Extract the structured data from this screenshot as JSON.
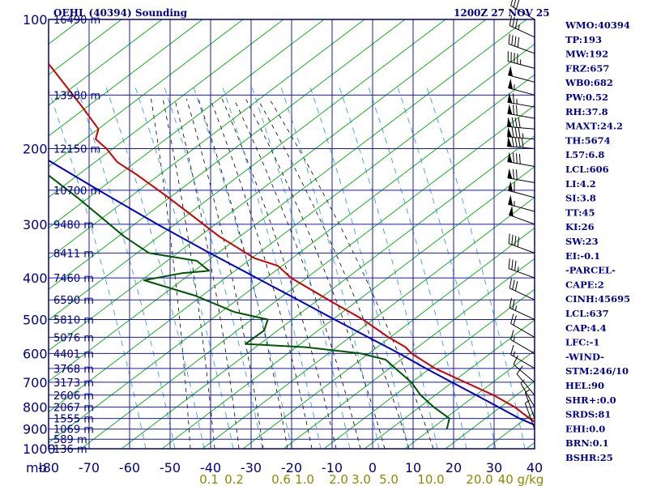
{
  "header": {
    "title": "OEHL (40394) Sounding",
    "time": "1200Z 27 NOV 25"
  },
  "colors": {
    "frame": "#00008b",
    "temperature": "#cc0000",
    "dewpoint": "#005500",
    "parcel": "#0000cc",
    "dry_adiabat": "#00aa00",
    "moist_adiabat": "#000000",
    "mixing_ratio": "#1e90ff",
    "mixing_label": "#8b8b00"
  },
  "chart_data": {
    "type": "line",
    "diagram": "skew-t",
    "pressure_axis": {
      "unit_label": "mb",
      "ticks": [
        100,
        200,
        300,
        400,
        500,
        600,
        700,
        800,
        900,
        1000
      ],
      "range": [
        1000,
        100
      ]
    },
    "temperature_axis": {
      "ticks": [
        -80,
        -70,
        -60,
        -50,
        -40,
        -30,
        -20,
        -10,
        0,
        10,
        20,
        30,
        40
      ],
      "tick_labels": [
        "-80",
        "-70",
        "-60",
        "-50",
        "-40",
        "-30",
        "-20",
        "-10",
        "0",
        "10",
        "20",
        "30",
        "40"
      ]
    },
    "mixing_ratio_labels": [
      "0.1",
      "0.2",
      "0.6",
      "1.0",
      "2.0",
      "3.0",
      "5.0",
      "10.0",
      "20.0",
      "40 g/kg"
    ],
    "height_labels": [
      {
        "p": 100,
        "text": "16490 m"
      },
      {
        "p": 150,
        "text": "13980 m"
      },
      {
        "p": 200,
        "text": "12150 m"
      },
      {
        "p": 250,
        "text": "10700 m"
      },
      {
        "p": 300,
        "text": "9480 m"
      },
      {
        "p": 350,
        "text": "8411 m"
      },
      {
        "p": 400,
        "text": "7460 m"
      },
      {
        "p": 450,
        "text": "6590 m"
      },
      {
        "p": 500,
        "text": "5810 m"
      },
      {
        "p": 550,
        "text": "5076 m"
      },
      {
        "p": 600,
        "text": "4401 m"
      },
      {
        "p": 650,
        "text": "3768 m"
      },
      {
        "p": 700,
        "text": "3173 m"
      },
      {
        "p": 750,
        "text": "2606 m"
      },
      {
        "p": 800,
        "text": "2067 m"
      },
      {
        "p": 850,
        "text": "1555 m"
      },
      {
        "p": 900,
        "text": "1069 m"
      },
      {
        "p": 950,
        "text": "589 m"
      },
      {
        "p": 1000,
        "text": "136 m"
      }
    ],
    "series": [
      {
        "name": "temperature",
        "points": [
          [
            905,
            22.0
          ],
          [
            850,
            19.0
          ],
          [
            800,
            16.5
          ],
          [
            750,
            12.5
          ],
          [
            700,
            6.8
          ],
          [
            650,
            0.8
          ],
          [
            600,
            -3.5
          ],
          [
            580,
            -4.3
          ],
          [
            550,
            -7.5
          ],
          [
            500,
            -12.0
          ],
          [
            450,
            -18.5
          ],
          [
            400,
            -25.5
          ],
          [
            375,
            -27.5
          ],
          [
            360,
            -32.5
          ],
          [
            320,
            -39.0
          ],
          [
            290,
            -43.0
          ],
          [
            260,
            -47.5
          ],
          [
            230,
            -53.0
          ],
          [
            215,
            -56.5
          ],
          [
            200,
            -57.8
          ],
          [
            190,
            -59.5
          ],
          [
            180,
            -57.8
          ],
          [
            160,
            -59.5
          ],
          [
            130,
            -63.0
          ],
          [
            110,
            -66.0
          ],
          [
            100,
            -68.0
          ]
        ]
      },
      {
        "name": "dewpoint",
        "points": [
          [
            900,
            -2.5
          ],
          [
            850,
            -0.8
          ],
          [
            800,
            -3.5
          ],
          [
            750,
            -5.5
          ],
          [
            700,
            -6.5
          ],
          [
            650,
            -9.0
          ],
          [
            620,
            -10.5
          ],
          [
            600,
            -16.0
          ],
          [
            580,
            -29.0
          ],
          [
            570,
            -43.5
          ],
          [
            530,
            -37.5
          ],
          [
            500,
            -35.5
          ],
          [
            480,
            -43.0
          ],
          [
            440,
            -51.0
          ],
          [
            405,
            -62.0
          ],
          [
            390,
            -52.0
          ],
          [
            385,
            -45.0
          ],
          [
            365,
            -47.0
          ],
          [
            350,
            -58.0
          ],
          [
            320,
            -62.5
          ],
          [
            290,
            -66.0
          ],
          [
            260,
            -70.0
          ],
          [
            230,
            -75.0
          ],
          [
            200,
            -80.0
          ],
          [
            185,
            -85.0
          ],
          [
            170,
            -88.0
          ]
        ]
      },
      {
        "name": "parcel",
        "points": [
          [
            905,
            22.0
          ],
          [
            850,
            16.5
          ],
          [
            800,
            12.5
          ],
          [
            750,
            8.2
          ],
          [
            700,
            3.5
          ],
          [
            650,
            -1.5
          ],
          [
            600,
            -6.5
          ],
          [
            550,
            -12.5
          ],
          [
            500,
            -19.0
          ],
          [
            450,
            -26.0
          ],
          [
            400,
            -34.0
          ],
          [
            350,
            -43.0
          ],
          [
            300,
            -53.0
          ],
          [
            250,
            -64.0
          ],
          [
            200,
            -77.0
          ],
          [
            175,
            -85.0
          ]
        ]
      }
    ],
    "wind_barbs": [
      {
        "p": 100,
        "dir": 300,
        "kt": 30
      },
      {
        "p": 110,
        "dir": 295,
        "kt": 35
      },
      {
        "p": 120,
        "dir": 290,
        "kt": 40
      },
      {
        "p": 130,
        "dir": 285,
        "kt": 45
      },
      {
        "p": 140,
        "dir": 285,
        "kt": 50
      },
      {
        "p": 150,
        "dir": 285,
        "kt": 55
      },
      {
        "p": 160,
        "dir": 280,
        "kt": 65
      },
      {
        "p": 170,
        "dir": 280,
        "kt": 70
      },
      {
        "p": 180,
        "dir": 275,
        "kt": 80
      },
      {
        "p": 190,
        "dir": 275,
        "kt": 85
      },
      {
        "p": 200,
        "dir": 275,
        "kt": 90
      },
      {
        "p": 220,
        "dir": 280,
        "kt": 80
      },
      {
        "p": 240,
        "dir": 280,
        "kt": 70
      },
      {
        "p": 260,
        "dir": 285,
        "kt": 60
      },
      {
        "p": 280,
        "dir": 285,
        "kt": 55
      },
      {
        "p": 300,
        "dir": 290,
        "kt": 50
      },
      {
        "p": 350,
        "dir": 290,
        "kt": 40
      },
      {
        "p": 400,
        "dir": 290,
        "kt": 35
      },
      {
        "p": 450,
        "dir": 295,
        "kt": 30
      },
      {
        "p": 500,
        "dir": 295,
        "kt": 25
      },
      {
        "p": 550,
        "dir": 300,
        "kt": 20
      },
      {
        "p": 600,
        "dir": 300,
        "kt": 15
      },
      {
        "p": 650,
        "dir": 300,
        "kt": 15
      },
      {
        "p": 700,
        "dir": 310,
        "kt": 10
      },
      {
        "p": 750,
        "dir": 320,
        "kt": 10
      },
      {
        "p": 800,
        "dir": 330,
        "kt": 5
      },
      {
        "p": 850,
        "dir": 340,
        "kt": 5
      },
      {
        "p": 900,
        "dir": 340,
        "kt": 5
      }
    ]
  },
  "indices": [
    "WMO:40394",
    "TP:193",
    "MW:192",
    "FRZ:657",
    "WB0:682",
    "PW:0.52",
    "RH:37.8",
    "MAXT:24.2",
    "TH:5674",
    "L57:6.8",
    "LCL:606",
    "LI:4.2",
    "SI:3.8",
    "TT:45",
    "KI:26",
    "SW:23",
    "EI:-0.1",
    "-PARCEL-",
    "CAPE:2",
    "CINH:45695",
    "LCL:637",
    "CAP:4.4",
    "LFC:-1",
    "-WIND-",
    "STM:246/10",
    "HEL:90",
    "SHR+:0.0",
    "SRDS:81",
    "EHI:0.0",
    "BRN:0.1",
    "BSHR:25"
  ]
}
